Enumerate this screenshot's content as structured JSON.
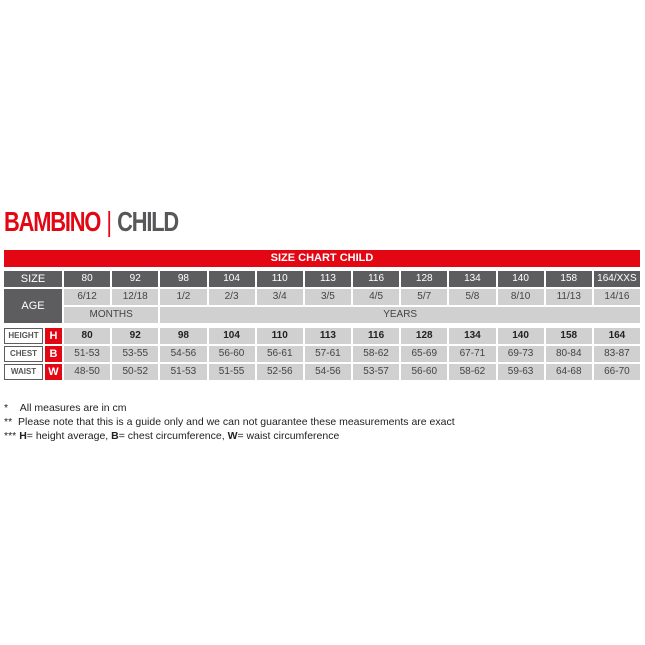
{
  "title": {
    "part1": "BAMBINO",
    "separator": "|",
    "part2": "CHILD"
  },
  "chart_title": "SIZE CHART CHILD",
  "size_label": "SIZE",
  "sizes": [
    "80",
    "92",
    "98",
    "104",
    "110",
    "113",
    "116",
    "128",
    "134",
    "140",
    "158",
    "164/XXS"
  ],
  "age_label": "AGE",
  "ages": [
    "6/12",
    "12/18",
    "1/2",
    "2/3",
    "3/4",
    "3/5",
    "4/5",
    "5/7",
    "5/8",
    "8/10",
    "11/13",
    "14/16"
  ],
  "age_units": {
    "months": "MONTHS",
    "years": "YEARS"
  },
  "rows": [
    {
      "name": "HEIGHT",
      "letter": "H",
      "values": [
        "80",
        "92",
        "98",
        "104",
        "110",
        "113",
        "116",
        "128",
        "134",
        "140",
        "158",
        "164"
      ]
    },
    {
      "name": "CHEST",
      "letter": "B",
      "values": [
        "51-53",
        "53-55",
        "54-56",
        "56-60",
        "56-61",
        "57-61",
        "58-62",
        "65-69",
        "67-71",
        "69-73",
        "80-84",
        "83-87"
      ]
    },
    {
      "name": "WAIST",
      "letter": "W",
      "values": [
        "48-50",
        "50-52",
        "51-53",
        "51-55",
        "52-56",
        "54-56",
        "53-57",
        "56-60",
        "58-62",
        "59-63",
        "64-68",
        "66-70"
      ]
    }
  ],
  "notes": [
    {
      "mark": "*",
      "text": "All measures are in cm"
    },
    {
      "mark": "**",
      "text": "Please note that this is a guide only and we can not guarantee these measurements are exact"
    },
    {
      "mark": "***",
      "parts": [
        "H",
        "= height average, ",
        "B",
        "= chest circumference, ",
        "W",
        "= waist circumference"
      ]
    }
  ],
  "colors": {
    "accent": "#e30613",
    "header": "#5d5d5f",
    "cell": "#d0d0d1"
  }
}
